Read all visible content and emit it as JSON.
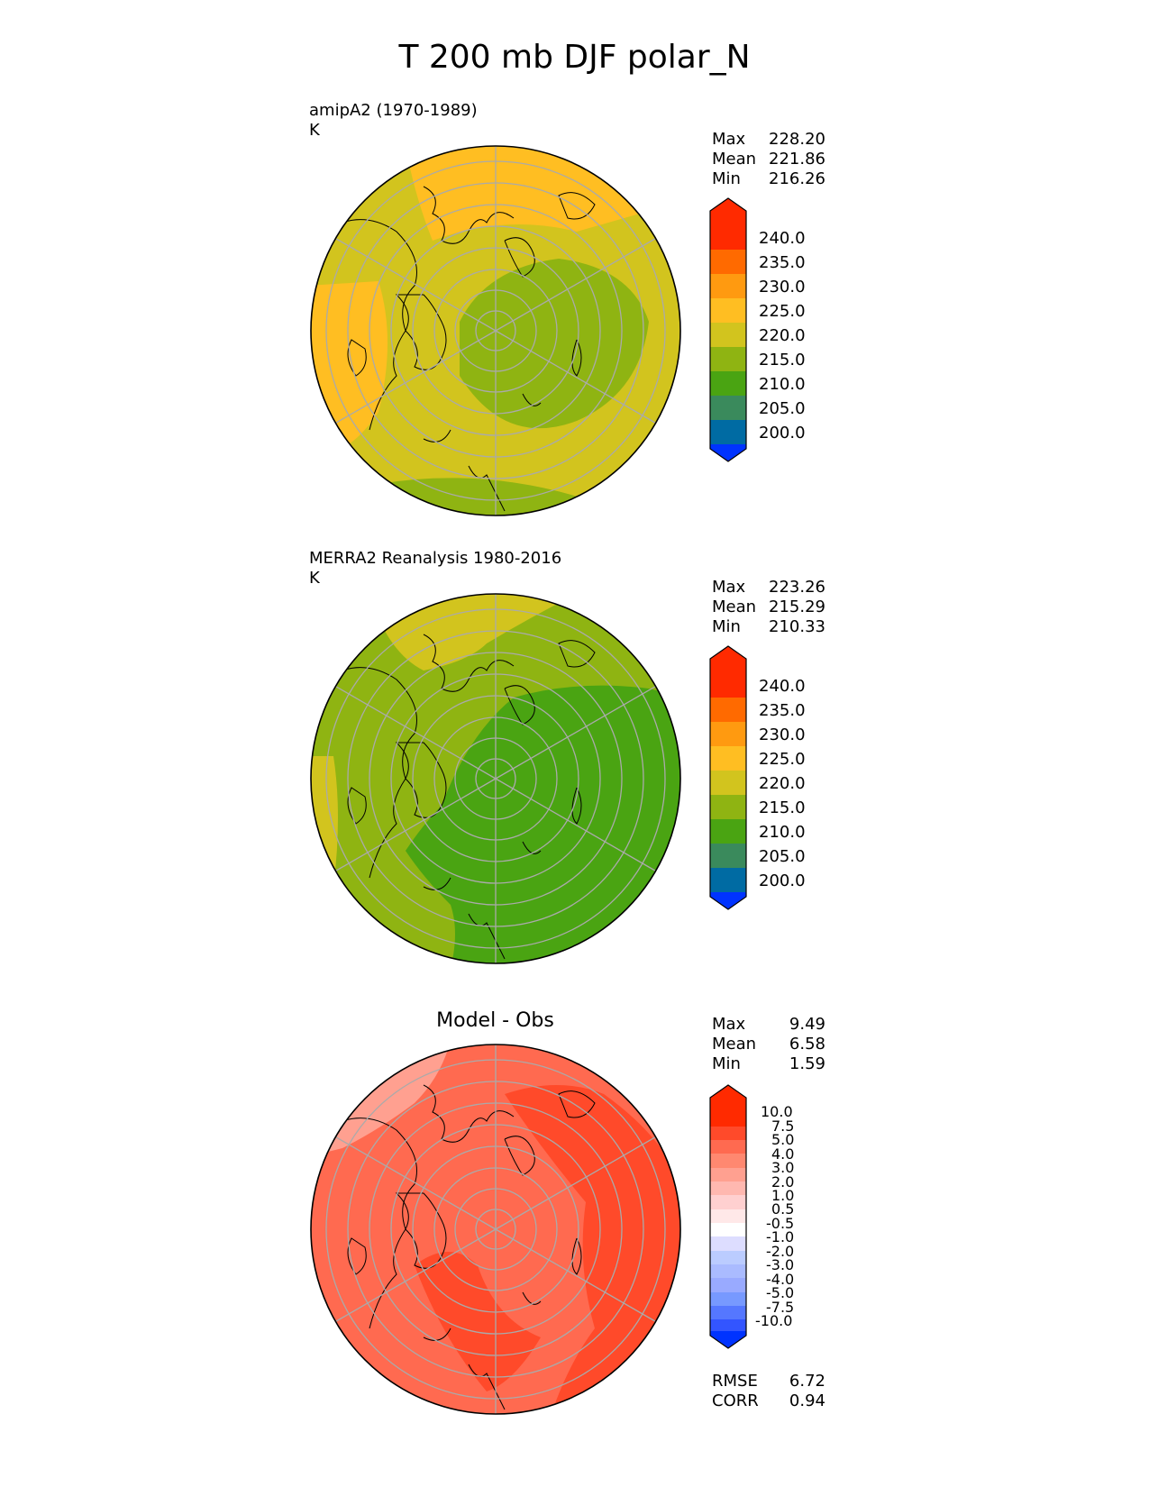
{
  "title": "T 200 mb DJF polar_N",
  "colors": {
    "abs_scale": [
      "#0033ff",
      "#006ba3",
      "#3a8a5c",
      "#4aa412",
      "#8fb412",
      "#d2c41e",
      "#ffbe22",
      "#ff9a10",
      "#ff6a00",
      "#ff2a00"
    ],
    "diff_scale": [
      "#0033ff",
      "#3355ff",
      "#5577ff",
      "#7799ff",
      "#99aaff",
      "#aabbff",
      "#bbccff",
      "#ddddff",
      "#ffffff",
      "#ffe8e8",
      "#ffd0d0",
      "#ffb8b0",
      "#ffa090",
      "#ff8870",
      "#ff6a50",
      "#ff4a2a",
      "#ff2a00"
    ],
    "grid": "#aaaaaa",
    "coast": "#000000"
  },
  "panels": [
    {
      "id": "model",
      "label_line1": "amipA2 (1970-1989)",
      "label_line2": "K",
      "stats": {
        "max_label": "Max",
        "max": "228.20",
        "mean_label": "Mean",
        "mean": "221.86",
        "min_label": "Min",
        "min": "216.26"
      },
      "colorbar_labels": [
        "240.0",
        "235.0",
        "230.0",
        "225.0",
        "220.0",
        "215.0",
        "210.0",
        "205.0",
        "200.0"
      ],
      "map_icon": "polar-stereographic-map-north"
    },
    {
      "id": "obs",
      "label_line1": "MERRA2 Reanalysis 1980-2016",
      "label_line2": "K",
      "stats": {
        "max_label": "Max",
        "max": "223.26",
        "mean_label": "Mean",
        "mean": "215.29",
        "min_label": "Min",
        "min": "210.33"
      },
      "colorbar_labels": [
        "240.0",
        "235.0",
        "230.0",
        "225.0",
        "220.0",
        "215.0",
        "210.0",
        "205.0",
        "200.0"
      ],
      "map_icon": "polar-stereographic-map-north"
    },
    {
      "id": "diff",
      "title": "Model - Obs",
      "stats": {
        "max_label": "Max",
        "max": "9.49",
        "mean_label": "Mean",
        "mean": "6.58",
        "min_label": "Min",
        "min": "1.59"
      },
      "colorbar_labels": [
        "10.0",
        "7.5",
        "5.0",
        "4.0",
        "3.0",
        "2.0",
        "1.0",
        "0.5",
        "-0.5",
        "-1.0",
        "-2.0",
        "-3.0",
        "-4.0",
        "-5.0",
        "-7.5",
        "-10.0"
      ],
      "footer": {
        "rmse_label": "RMSE",
        "rmse": "6.72",
        "corr_label": "CORR",
        "corr": "0.94"
      },
      "map_icon": "polar-stereographic-map-north"
    }
  ]
}
